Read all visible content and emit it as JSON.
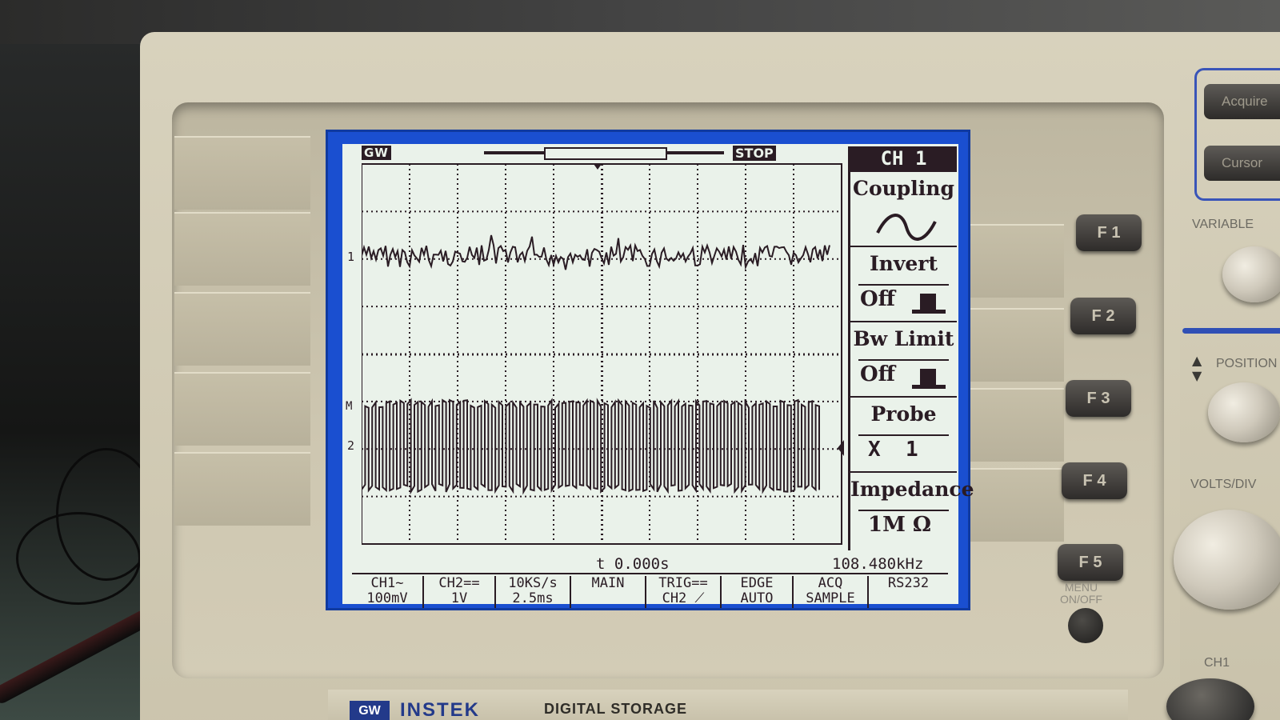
{
  "screen": {
    "brand_badge": "GW",
    "run_state": "STOP",
    "channel1_marker": "1",
    "channel2_marker": "2",
    "trigger_marker": "M"
  },
  "menu": {
    "title": "CH 1",
    "items": [
      {
        "label": "Coupling",
        "value": "~"
      },
      {
        "label": "Invert",
        "value": "Off"
      },
      {
        "label": "Bw Limit",
        "value": "Off"
      },
      {
        "label": "Probe",
        "value": "X  1"
      },
      {
        "label": "Impedance",
        "value": "1M Ω"
      }
    ]
  },
  "status": {
    "time_offset": "t 0.000s",
    "frequency": "108.480kHz"
  },
  "info_bar": [
    {
      "line1": "CH1~",
      "line2": "100mV"
    },
    {
      "line1": "CH2==",
      "line2": "1V"
    },
    {
      "line1": "10KS/s",
      "line2": "2.5ms"
    },
    {
      "line1": "MAIN",
      "line2": ""
    },
    {
      "line1": "TRIG==",
      "line2": "CH2 ⟋"
    },
    {
      "line1": "EDGE",
      "line2": "AUTO"
    },
    {
      "line1": "ACQ",
      "line2": "SAMPLE"
    },
    {
      "line1": "RS232",
      "line2": ""
    }
  ],
  "function_keys": [
    "F 1",
    "F 2",
    "F 3",
    "F 4",
    "F 5"
  ],
  "side_buttons": [
    "Acquire",
    "Cursor"
  ],
  "panel_labels": {
    "variable": "VARIABLE",
    "position": "POSITION",
    "volts_div": "VOLTS/DIV",
    "menu_onoff": "MENU\nON/OFF",
    "ch1": "CH1"
  },
  "branding": {
    "logo": "GW",
    "company": "INSTEK",
    "product": "DIGITAL STORAGE"
  },
  "colors": {
    "screen_bg": "#eaf2ea",
    "trace": "#2a1c24",
    "frame": "#1a4fd0",
    "bezel": "#d8d2bd"
  }
}
